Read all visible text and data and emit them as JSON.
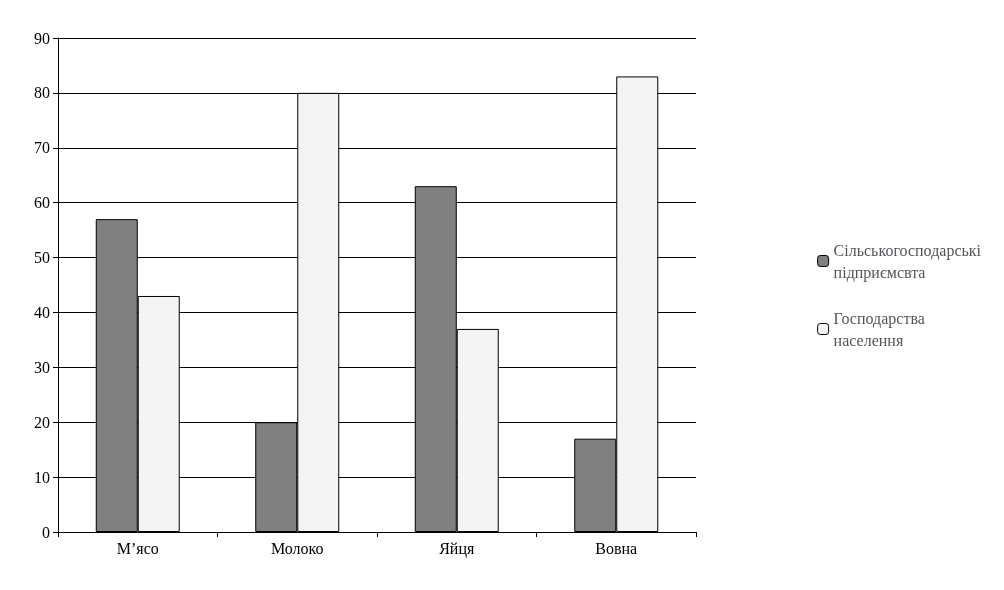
{
  "chart_data": {
    "type": "bar",
    "categories": [
      "М’ясо",
      "Молоко",
      "Яйця",
      "Вовна"
    ],
    "series": [
      {
        "name": "Сільськогосподарські підприємсвта",
        "color": "#808080",
        "values": [
          57,
          20,
          63,
          17
        ]
      },
      {
        "name": "Господарства населення",
        "color": "#f4f4f4",
        "values": [
          43,
          80,
          37,
          83
        ]
      }
    ],
    "ylim": [
      0,
      90
    ],
    "yticks": [
      0,
      10,
      20,
      30,
      40,
      50,
      60,
      70,
      80,
      90
    ],
    "grid": "y",
    "legend": "right"
  }
}
